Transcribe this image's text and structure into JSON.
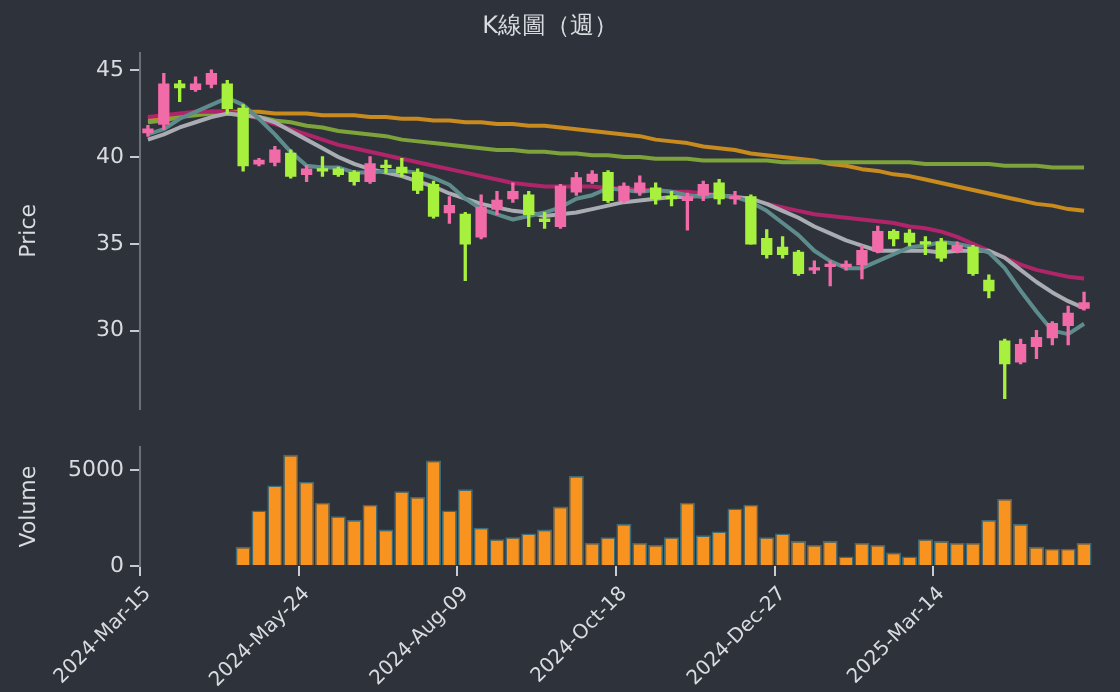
{
  "chart_data": [
    {
      "type": "candlestick",
      "title": "K線圖（週）",
      "ylabel": "Price",
      "tick_labels": "y",
      "categories": [
        null,
        null,
        null,
        null,
        null,
        null,
        null,
        null,
        null,
        null,
        null,
        null,
        null,
        null,
        null,
        null,
        null,
        null,
        null,
        null,
        null,
        null,
        null,
        null,
        null,
        null,
        null,
        null,
        null,
        null,
        null,
        null,
        null,
        null,
        null,
        null,
        null,
        null,
        null,
        null,
        null,
        null,
        null,
        null,
        null,
        null,
        null,
        null,
        null,
        null,
        null,
        null,
        null,
        null,
        null,
        null,
        null,
        null,
        null,
        null
      ],
      "ylim": [
        25.5,
        46
      ],
      "yticks": [
        30,
        35,
        40,
        45
      ],
      "series": [
        {
          "type": "candlestick",
          "ohlc": [
            [
              41.4,
              41.8,
              41.2,
              41.6
            ],
            [
              41.9,
              44.8,
              41.6,
              44.2
            ],
            [
              44.2,
              44.4,
              43.2,
              44.0
            ],
            [
              43.9,
              44.6,
              43.8,
              44.2
            ],
            [
              44.2,
              45.0,
              44.0,
              44.8
            ],
            [
              44.2,
              44.4,
              42.5,
              42.8
            ],
            [
              42.8,
              43.0,
              39.2,
              39.5
            ],
            [
              39.6,
              39.9,
              39.5,
              39.8
            ],
            [
              39.7,
              40.6,
              39.5,
              40.4
            ],
            [
              40.2,
              40.4,
              38.8,
              38.9
            ],
            [
              39.0,
              39.5,
              38.6,
              39.3
            ],
            [
              39.3,
              40.0,
              38.9,
              39.2
            ],
            [
              39.3,
              39.4,
              38.9,
              39.0
            ],
            [
              39.1,
              39.2,
              38.4,
              38.6
            ],
            [
              38.6,
              40.0,
              38.5,
              39.6
            ],
            [
              39.5,
              39.8,
              39.1,
              39.4
            ],
            [
              39.4,
              39.9,
              38.9,
              39.1
            ],
            [
              39.1,
              39.3,
              37.9,
              38.1
            ],
            [
              38.4,
              38.6,
              36.5,
              36.6
            ],
            [
              36.8,
              37.7,
              36.2,
              37.2
            ],
            [
              36.7,
              36.8,
              32.9,
              35.0
            ],
            [
              35.4,
              37.8,
              35.3,
              37.1
            ],
            [
              37.0,
              38.0,
              36.7,
              37.5
            ],
            [
              37.6,
              38.5,
              37.4,
              38.0
            ],
            [
              37.8,
              38.0,
              36.0,
              36.7
            ],
            [
              36.4,
              36.8,
              35.9,
              36.3
            ],
            [
              36.0,
              38.4,
              35.9,
              38.3
            ],
            [
              38.0,
              39.1,
              37.8,
              38.8
            ],
            [
              38.6,
              39.2,
              38.5,
              39.0
            ],
            [
              39.1,
              39.2,
              37.4,
              37.5
            ],
            [
              37.5,
              38.5,
              37.4,
              38.3
            ],
            [
              38.0,
              38.9,
              37.8,
              38.5
            ],
            [
              38.2,
              38.5,
              37.3,
              37.6
            ],
            [
              37.7,
              38.0,
              37.2,
              37.6
            ],
            [
              37.5,
              37.9,
              35.8,
              37.7
            ],
            [
              37.8,
              38.6,
              37.5,
              38.4
            ],
            [
              38.5,
              38.7,
              37.3,
              37.6
            ],
            [
              37.6,
              38.0,
              37.3,
              37.7
            ],
            [
              37.7,
              37.8,
              35.0,
              35.0
            ],
            [
              35.3,
              35.8,
              34.2,
              34.4
            ],
            [
              34.8,
              35.4,
              34.2,
              34.4
            ],
            [
              34.5,
              34.6,
              33.2,
              33.3
            ],
            [
              33.5,
              34.0,
              33.3,
              33.6
            ],
            [
              33.7,
              34.0,
              32.6,
              33.8
            ],
            [
              33.7,
              34.0,
              33.5,
              33.8
            ],
            [
              33.8,
              34.9,
              33.0,
              34.6
            ],
            [
              34.6,
              36.0,
              34.5,
              35.7
            ],
            [
              35.7,
              35.8,
              34.9,
              35.3
            ],
            [
              35.6,
              35.8,
              34.9,
              35.1
            ],
            [
              35.1,
              35.4,
              34.4,
              35.0
            ],
            [
              35.1,
              35.3,
              34.0,
              34.2
            ],
            [
              34.6,
              35.1,
              34.5,
              34.9
            ],
            [
              34.8,
              34.9,
              33.2,
              33.3
            ],
            [
              32.9,
              33.2,
              31.9,
              32.3
            ],
            [
              29.4,
              29.5,
              26.1,
              28.1
            ],
            [
              28.2,
              29.5,
              28.1,
              29.2
            ],
            [
              29.1,
              30.0,
              28.4,
              29.6
            ],
            [
              29.6,
              30.5,
              29.2,
              30.4
            ],
            [
              30.3,
              31.4,
              29.2,
              31.0
            ],
            [
              31.3,
              32.2,
              31.2,
              31.6
            ]
          ],
          "colors": [
            "#f06ba8",
            "#f06ba8",
            "#a8f03e",
            "#f06ba8",
            "#f06ba8",
            "#a8f03e",
            "#a8f03e",
            "#f06ba8",
            "#f06ba8",
            "#a8f03e",
            "#f06ba8",
            "#a8f03e",
            "#a8f03e",
            "#a8f03e",
            "#f06ba8",
            "#a8f03e",
            "#a8f03e",
            "#a8f03e",
            "#a8f03e",
            "#f06ba8",
            "#a8f03e",
            "#f06ba8",
            "#f06ba8",
            "#f06ba8",
            "#a8f03e",
            "#a8f03e",
            "#f06ba8",
            "#f06ba8",
            "#f06ba8",
            "#a8f03e",
            "#f06ba8",
            "#f06ba8",
            "#a8f03e",
            "#a8f03e",
            "#f06ba8",
            "#f06ba8",
            "#a8f03e",
            "#f06ba8",
            "#a8f03e",
            "#a8f03e",
            "#a8f03e",
            "#a8f03e",
            "#f06ba8",
            "#f06ba8",
            "#f06ba8",
            "#f06ba8",
            "#f06ba8",
            "#a8f03e",
            "#a8f03e",
            "#a8f03e",
            "#a8f03e",
            "#f06ba8",
            "#a8f03e",
            "#a8f03e",
            "#a8f03e",
            "#f06ba8",
            "#f06ba8",
            "#f06ba8",
            "#f06ba8",
            "#f06ba8"
          ]
        },
        {
          "type": "line",
          "color": "#5e8c8c",
          "values": [
            41.3,
            41.6,
            42.2,
            42.6,
            43.0,
            43.4,
            43.0,
            42.2,
            41.3,
            40.3,
            39.5,
            39.4,
            39.4,
            39.1,
            39.1,
            39.2,
            39.2,
            39.1,
            38.8,
            38.4,
            37.6,
            37.0,
            36.7,
            36.4,
            36.6,
            36.8,
            37.1,
            37.6,
            37.8,
            38.2,
            38.1,
            38.0,
            38.1,
            38.0,
            37.8,
            37.7,
            37.8,
            37.7,
            37.4,
            36.9,
            36.2,
            35.5,
            34.6,
            34.0,
            33.6,
            33.6,
            34.0,
            34.4,
            34.8,
            34.9,
            35.1,
            35.0,
            34.8,
            34.5,
            33.6,
            32.3,
            31.1,
            30.0,
            29.8,
            30.4
          ]
        },
        {
          "type": "line",
          "color": "#a9adb3",
          "values": [
            41.0,
            41.3,
            41.7,
            42.0,
            42.3,
            42.5,
            42.4,
            42.3,
            42.0,
            41.5,
            41.0,
            40.5,
            40.0,
            39.6,
            39.3,
            39.1,
            38.9,
            38.6,
            38.3,
            37.9,
            37.6,
            37.3,
            37.1,
            36.9,
            36.8,
            36.6,
            36.7,
            36.8,
            37.0,
            37.2,
            37.4,
            37.5,
            37.6,
            37.7,
            37.7,
            37.8,
            37.8,
            37.7,
            37.6,
            37.3,
            36.9,
            36.5,
            36.0,
            35.6,
            35.2,
            34.9,
            34.6,
            34.6,
            34.6,
            34.6,
            34.5,
            34.6,
            34.6,
            34.6,
            34.2,
            33.5,
            32.8,
            32.2,
            31.7,
            31.3
          ]
        },
        {
          "type": "line",
          "color": "#b0246a",
          "values": [
            42.3,
            42.4,
            42.5,
            42.6,
            42.6,
            42.6,
            42.5,
            42.2,
            41.9,
            41.6,
            41.3,
            41.0,
            40.7,
            40.5,
            40.3,
            40.1,
            39.9,
            39.7,
            39.5,
            39.3,
            39.1,
            38.9,
            38.7,
            38.5,
            38.4,
            38.3,
            38.3,
            38.3,
            38.3,
            38.2,
            38.2,
            38.1,
            38.1,
            38.0,
            38.0,
            37.9,
            37.8,
            37.7,
            null,
            37.3,
            37.1,
            36.9,
            36.7,
            36.6,
            36.5,
            36.4,
            36.3,
            36.2,
            36.0,
            35.9,
            35.7,
            35.4,
            35.0,
            34.6,
            34.2,
            33.8,
            33.5,
            33.3,
            33.1,
            33.0
          ]
        },
        {
          "type": "line",
          "color": "#7ea33a",
          "values": [
            42.0,
            42.1,
            42.3,
            42.4,
            42.5,
            42.5,
            42.4,
            42.3,
            42.1,
            42.0,
            41.8,
            41.7,
            41.5,
            41.4,
            41.3,
            41.2,
            41.0,
            40.9,
            40.8,
            40.7,
            40.6,
            40.5,
            40.4,
            40.4,
            40.3,
            40.3,
            40.2,
            40.2,
            40.1,
            40.1,
            40.0,
            40.0,
            39.9,
            39.9,
            39.9,
            39.8,
            39.8,
            39.8,
            39.8,
            39.8,
            39.7,
            39.7,
            39.7,
            39.7,
            39.7,
            39.7,
            39.7,
            39.7,
            39.7,
            39.6,
            39.6,
            39.6,
            39.6,
            39.6,
            39.5,
            39.5,
            39.5,
            39.4,
            39.4,
            39.4
          ]
        },
        {
          "type": "line",
          "color": "#c98a1e",
          "values": [
            42.2,
            42.3,
            42.4,
            42.5,
            42.6,
            42.6,
            42.6,
            42.6,
            42.5,
            42.5,
            42.5,
            42.4,
            42.4,
            42.4,
            42.3,
            42.3,
            42.2,
            42.2,
            42.1,
            42.1,
            42.0,
            42.0,
            41.9,
            41.9,
            41.8,
            41.8,
            41.7,
            41.6,
            41.5,
            41.4,
            41.3,
            41.2,
            41.0,
            40.9,
            40.8,
            40.6,
            40.5,
            40.4,
            40.2,
            40.1,
            40.0,
            39.9,
            39.8,
            39.6,
            39.5,
            39.3,
            39.2,
            39.0,
            38.9,
            38.7,
            38.5,
            38.3,
            38.1,
            37.9,
            37.7,
            37.5,
            37.3,
            37.2,
            37.0,
            36.9
          ]
        }
      ]
    },
    {
      "type": "bar",
      "ylabel": "Volume",
      "color": "#f7931e",
      "categories": [
        "2024-Mar-15",
        null,
        null,
        null,
        null,
        null,
        null,
        null,
        null,
        null,
        "2024-May-24",
        null,
        null,
        null,
        null,
        null,
        null,
        null,
        null,
        null,
        "2024-Aug-09",
        null,
        null,
        null,
        null,
        null,
        null,
        null,
        null,
        null,
        "2024-Oct-18",
        null,
        null,
        null,
        null,
        null,
        null,
        null,
        null,
        null,
        "2024-Dec-27",
        null,
        null,
        null,
        null,
        null,
        null,
        null,
        null,
        null,
        "2025-Mar-14",
        null,
        null,
        null,
        null,
        null,
        null,
        null,
        null,
        null
      ],
      "ylim": [
        0,
        6200
      ],
      "yticks": [
        0,
        5000
      ],
      "values": [
        null,
        null,
        null,
        null,
        null,
        null,
        1000,
        2900,
        4200,
        5800,
        4400,
        3300,
        2600,
        2400,
        3200,
        1900,
        3900,
        3600,
        5500,
        2900,
        4000,
        2000,
        1400,
        1500,
        1700,
        1900,
        3100,
        4700,
        1200,
        1500,
        2200,
        1200,
        1100,
        1500,
        3300,
        1600,
        1800,
        3000,
        3200,
        1500,
        1700,
        1300,
        1100,
        1300,
        500,
        1200,
        1100,
        700,
        500,
        1400,
        1300,
        1200,
        1200,
        2400,
        3500,
        2200,
        1000,
        900,
        900,
        1200
      ]
    }
  ]
}
